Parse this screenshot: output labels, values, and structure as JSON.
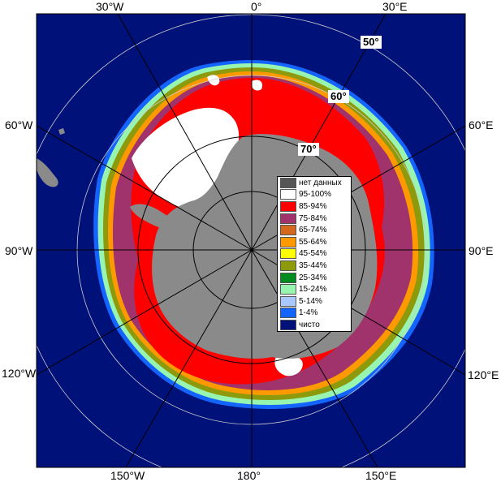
{
  "map": {
    "longitude_labels": {
      "top_w30": "30°W",
      "top_0": "0°",
      "top_e30": "30°E",
      "left_w60": "60°W",
      "left_w90": "90°W",
      "left_w120": "120°W",
      "right_e60": "60°E",
      "right_e90": "90°E",
      "right_e120": "120°E",
      "bottom_w150": "150°W",
      "bottom_180": "180°",
      "bottom_e150": "150°E"
    },
    "latitude_labels": {
      "lat50": "50°",
      "lat60": "60°",
      "lat70": "70°"
    },
    "colors": {
      "ocean": "#00127a",
      "land": "#8a8a8a",
      "grid": "#000000"
    }
  },
  "legend": {
    "items": [
      {
        "label": "нет данных",
        "color": "#555555"
      },
      {
        "label": "95-100%",
        "color": "#ffffff"
      },
      {
        "label": "85-94%",
        "color": "#ff0000"
      },
      {
        "label": "75-84%",
        "color": "#a0336b"
      },
      {
        "label": "65-74%",
        "color": "#d2691e"
      },
      {
        "label": "55-64%",
        "color": "#ff9900"
      },
      {
        "label": "45-54%",
        "color": "#ffff00"
      },
      {
        "label": "35-44%",
        "color": "#8c9a0b"
      },
      {
        "label": "25-34%",
        "color": "#008c1e"
      },
      {
        "label": "15-24%",
        "color": "#98f5b0"
      },
      {
        "label": "5-14%",
        "color": "#a8c8ff"
      },
      {
        "label": "1-4%",
        "color": "#1464ff"
      },
      {
        "label": "чисто",
        "color": "#00127a"
      }
    ]
  }
}
